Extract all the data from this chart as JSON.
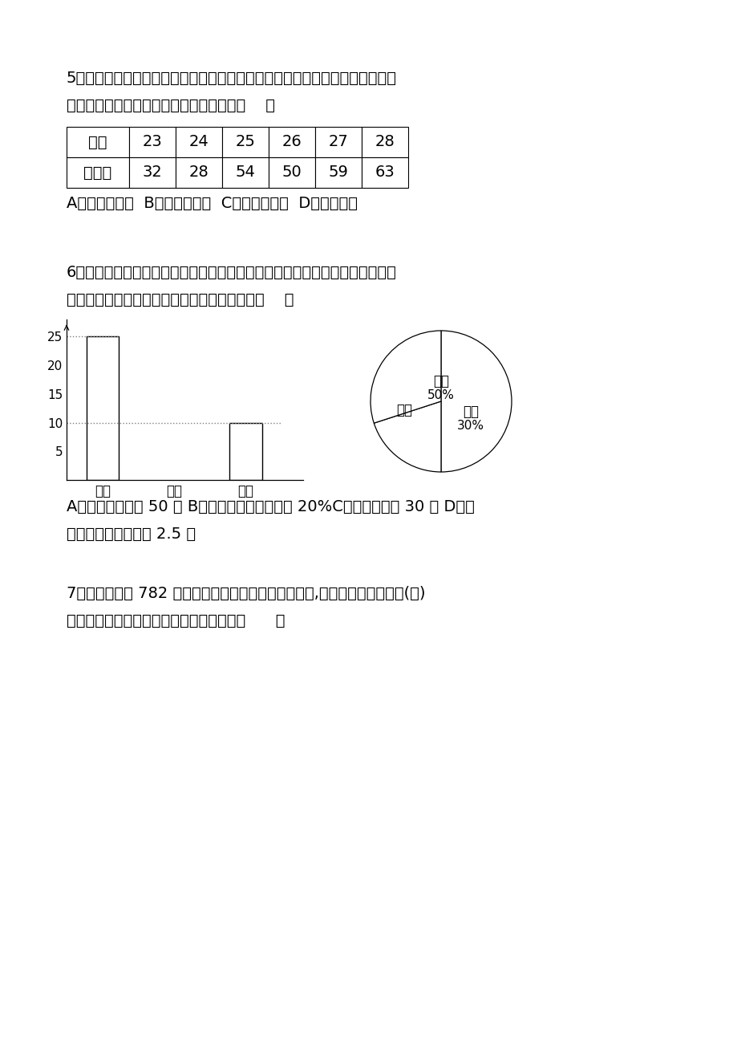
{
  "bg_color": "#ffffff",
  "q5": {
    "text_line1": "5．如表所示，是中国奥运健儿在奥运会中获得的奖牌的情况，为了更清楚地看",
    "text_line2": "出获得奖牌情况是上升还是下降，应采用（    ）",
    "table_headers": [
      "屆数",
      "23",
      "24",
      "25",
      "26",
      "27",
      "28"
    ],
    "table_row2": [
      "奖牌数",
      "32",
      "28",
      "54",
      "50",
      "59",
      "63"
    ],
    "answer_line": "A．条形统计图  B．折线统计图  C．扇形统计图  D．以上都对"
  },
  "q6": {
    "text_line1": "6．如图是某班全体学生外出时乘车、步行、骑车的人数分布直方图和扇形分布",
    "text_line2": "图（两图都不完整），则下列结论中错误的是（    ）",
    "bar_categories": [
      "乘车",
      "步行",
      "骑车"
    ],
    "bar_values": [
      25,
      0,
      10
    ],
    "answer_line1": "A．该班总人数为 50 人 B．骑车人数占总人数的 20%C．步行人数为 30 人 D．乘",
    "answer_line2": "车人数是骑车人数的 2.5 倍"
  },
  "q7": {
    "text_line1": "7．如图为某校 782 名学生小考成绩的次数分配直方图,若下列有一选项为图(一)",
    "text_line2": "成绩的累积次数分配直方图，则此图为何（      ）"
  }
}
